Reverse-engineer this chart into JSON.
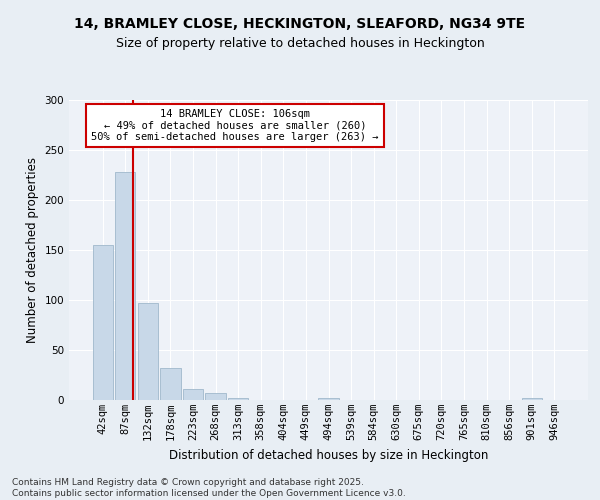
{
  "title1": "14, BRAMLEY CLOSE, HECKINGTON, SLEAFORD, NG34 9TE",
  "title2": "Size of property relative to detached houses in Heckington",
  "xlabel": "Distribution of detached houses by size in Heckington",
  "ylabel": "Number of detached properties",
  "bins": [
    "42sqm",
    "87sqm",
    "132sqm",
    "178sqm",
    "223sqm",
    "268sqm",
    "313sqm",
    "358sqm",
    "404sqm",
    "449sqm",
    "494sqm",
    "539sqm",
    "584sqm",
    "630sqm",
    "675sqm",
    "720sqm",
    "765sqm",
    "810sqm",
    "856sqm",
    "901sqm",
    "946sqm"
  ],
  "values": [
    155,
    228,
    97,
    32,
    11,
    7,
    2,
    0,
    0,
    0,
    2,
    0,
    0,
    0,
    0,
    0,
    0,
    0,
    0,
    2,
    0
  ],
  "bar_color": "#c8d8e8",
  "bar_edge_color": "#a0b8cc",
  "vline_color": "#cc0000",
  "vline_pos": 1.35,
  "annotation_text": "14 BRAMLEY CLOSE: 106sqm\n← 49% of detached houses are smaller (260)\n50% of semi-detached houses are larger (263) →",
  "annotation_box_color": "#ffffff",
  "annotation_box_edge": "#cc0000",
  "ylim": [
    0,
    300
  ],
  "yticks": [
    0,
    50,
    100,
    150,
    200,
    250,
    300
  ],
  "bg_color": "#e8eef4",
  "plot_bg_color": "#eef2f8",
  "footer": "Contains HM Land Registry data © Crown copyright and database right 2025.\nContains public sector information licensed under the Open Government Licence v3.0.",
  "title1_fontsize": 10,
  "title2_fontsize": 9,
  "xlabel_fontsize": 8.5,
  "ylabel_fontsize": 8.5,
  "tick_fontsize": 7.5,
  "footer_fontsize": 6.5,
  "ann_fontsize": 7.5
}
